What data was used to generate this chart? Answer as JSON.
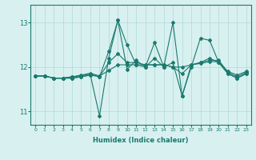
{
  "xlabel": "Humidex (Indice chaleur)",
  "ylabel": "",
  "x": [
    0,
    1,
    2,
    3,
    4,
    5,
    6,
    7,
    8,
    9,
    10,
    11,
    12,
    13,
    14,
    15,
    16,
    17,
    18,
    19,
    20,
    21,
    22,
    23
  ],
  "lines": [
    [
      11.8,
      11.8,
      11.75,
      11.75,
      11.75,
      11.78,
      11.82,
      10.9,
      12.2,
      13.05,
      12.5,
      12.05,
      12.0,
      12.55,
      12.0,
      13.0,
      11.35,
      12.0,
      12.65,
      12.6,
      12.1,
      11.85,
      11.75,
      11.85
    ],
    [
      11.8,
      11.8,
      11.75,
      11.75,
      11.75,
      11.78,
      11.82,
      11.78,
      12.35,
      13.05,
      11.95,
      12.15,
      12.0,
      12.2,
      12.0,
      12.1,
      11.35,
      12.05,
      12.1,
      12.2,
      12.1,
      11.85,
      11.75,
      11.85
    ],
    [
      11.8,
      11.8,
      11.75,
      11.75,
      11.78,
      11.8,
      11.84,
      11.78,
      12.1,
      12.3,
      12.1,
      12.1,
      12.05,
      12.05,
      12.05,
      12.0,
      11.85,
      12.05,
      12.1,
      12.15,
      12.15,
      11.88,
      11.78,
      11.88
    ],
    [
      11.8,
      11.8,
      11.75,
      11.75,
      11.78,
      11.82,
      11.86,
      11.8,
      11.92,
      12.05,
      12.05,
      12.05,
      12.05,
      12.05,
      12.05,
      12.0,
      12.0,
      12.05,
      12.08,
      12.12,
      12.12,
      11.9,
      11.82,
      11.9
    ]
  ],
  "line_color": "#1a7a6e",
  "marker": "D",
  "marker_size": 2.0,
  "linewidth": 0.8,
  "bg_color": "#d8f0f0",
  "grid_color": "#b0d8d8",
  "yticks": [
    11,
    12,
    13
  ],
  "ylim": [
    10.7,
    13.4
  ],
  "xlim": [
    -0.5,
    23.5
  ]
}
